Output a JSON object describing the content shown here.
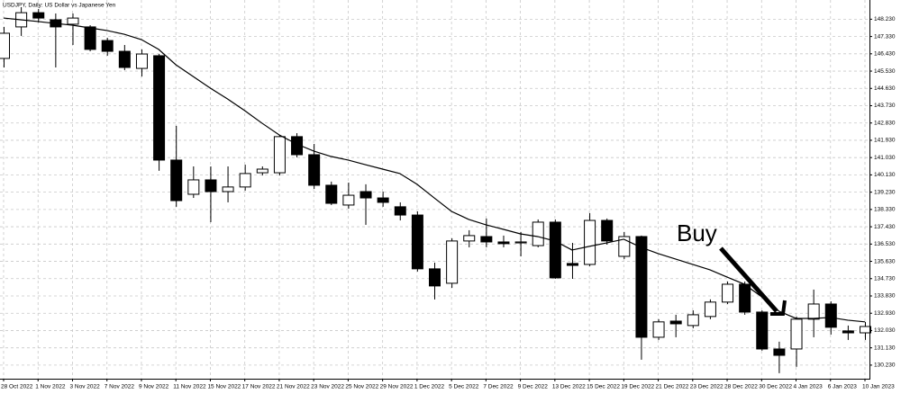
{
  "chart_data": {
    "type": "candlestick",
    "title": "USDJPY, Daily:  US Dollar vs Japanese Yen",
    "categories": [
      "28 Oct 2022",
      null,
      "1 Nov 2022",
      null,
      "3 Nov 2022",
      null,
      "7 Nov 2022",
      null,
      "9 Nov 2022",
      null,
      "11 Nov 2022",
      null,
      "15 Nov 2022",
      null,
      "17 Nov 2022",
      null,
      "21 Nov 2022",
      null,
      "23 Nov 2022",
      null,
      "25 Nov 2022",
      null,
      "29 Nov 2022",
      null,
      "1 Dec 2022",
      null,
      "5 Dec 2022",
      null,
      "7 Dec 2022",
      null,
      "9 Dec 2022",
      null,
      "13 Dec 2022",
      null,
      "15 Dec 2022",
      null,
      "19 Dec 2022",
      null,
      "21 Dec 2022",
      null,
      "23 Dec 2022",
      null,
      "28 Dec 2022",
      null,
      "30 Dec 2022",
      null,
      "4 Jan 2023",
      null,
      "6 Jan 2023",
      null,
      "10 Jan 2023"
    ],
    "open": [
      146.19,
      147.83,
      148.57,
      148.2,
      147.97,
      147.83,
      147.12,
      146.56,
      145.67,
      146.33,
      140.9,
      139.12,
      139.87,
      139.26,
      139.5,
      140.24,
      140.24,
      142.12,
      141.18,
      139.59,
      138.56,
      139.26,
      138.93,
      138.47,
      138.04,
      135.24,
      134.49,
      136.69,
      136.92,
      136.64,
      136.59,
      136.45,
      137.67,
      135.52,
      135.47,
      137.76,
      135.89,
      136.92,
      131.68,
      132.52,
      132.29,
      132.76,
      133.51,
      134.44,
      132.99,
      131.07,
      131.07,
      132.62,
      133.41,
      132.01,
      131.91
    ],
    "high": [
      147.83,
      148.86,
      148.76,
      148.53,
      148.53,
      147.92,
      147.26,
      146.89,
      146.66,
      146.42,
      142.68,
      140.57,
      140.57,
      140.57,
      140.66,
      140.57,
      142.21,
      142.3,
      141.74,
      139.78,
      139.73,
      139.64,
      139.26,
      138.7,
      138.23,
      135.56,
      136.83,
      137.25,
      137.86,
      136.97,
      137.16,
      137.81,
      137.81,
      136.59,
      138.14,
      137.86,
      137.16,
      136.97,
      132.62,
      132.85,
      133.08,
      133.65,
      134.58,
      134.58,
      133.08,
      131.45,
      132.76,
      134.16,
      133.55,
      132.29,
      132.48
    ],
    "low": [
      145.72,
      147.36,
      148.06,
      145.72,
      146.89,
      146.56,
      146.33,
      145.58,
      145.25,
      140.34,
      138.47,
      138.93,
      137.67,
      138.7,
      139.31,
      140.1,
      140.1,
      141.04,
      139.4,
      138.56,
      138.37,
      137.53,
      138.47,
      137.76,
      135.1,
      133.65,
      134.25,
      136.36,
      136.36,
      136.36,
      135.89,
      136.36,
      134.72,
      134.72,
      135.38,
      136.5,
      135.75,
      130.51,
      131.54,
      131.68,
      132.15,
      132.62,
      133.41,
      132.85,
      130.98,
      129.81,
      130.14,
      131.68,
      131.82,
      131.54,
      131.54
    ],
    "close": [
      147.5,
      148.57,
      148.29,
      147.83,
      148.29,
      146.66,
      146.56,
      145.72,
      146.42,
      140.9,
      138.79,
      139.87,
      139.26,
      139.5,
      140.2,
      140.43,
      142.12,
      141.18,
      139.59,
      138.65,
      139.07,
      138.93,
      138.7,
      138.04,
      135.24,
      134.35,
      136.69,
      136.97,
      136.64,
      136.55,
      136.64,
      137.67,
      134.77,
      135.42,
      137.76,
      136.69,
      136.92,
      131.68,
      132.48,
      132.38,
      132.85,
      133.51,
      134.44,
      132.99,
      131.07,
      130.74,
      132.62,
      133.41,
      132.2,
      131.91,
      132.24
    ],
    "up_color": "#ffffff",
    "down_color": "#000000",
    "ma": {
      "color": "#000000",
      "values": [
        148.29,
        148.2,
        148.11,
        148.01,
        147.92,
        147.78,
        147.64,
        147.45,
        147.17,
        146.66,
        145.86,
        145.25,
        144.64,
        144.08,
        143.47,
        142.82,
        142.21,
        141.74,
        141.37,
        141.09,
        140.9,
        140.66,
        140.43,
        140.2,
        139.64,
        138.93,
        138.23,
        137.81,
        137.53,
        137.3,
        137.06,
        136.92,
        136.69,
        136.22,
        136.41,
        136.59,
        136.78,
        136.36,
        136.03,
        135.75,
        135.47,
        135.19,
        134.81,
        134.44,
        133.79,
        133.04,
        132.66,
        132.66,
        132.71,
        132.57,
        132.48
      ]
    },
    "annotation": "Buy",
    "ylim": [
      129.57,
      149.23
    ],
    "yticks": [
      {
        "value": 130.23,
        "label": "130.230"
      },
      {
        "value": 131.13,
        "label": "131.130"
      },
      {
        "value": 132.03,
        "label": "132.030"
      },
      {
        "value": 132.93,
        "label": "132.930"
      },
      {
        "value": 133.83,
        "label": "133.830"
      },
      {
        "value": 134.73,
        "label": "134.730"
      },
      {
        "value": 135.63,
        "label": "135.630"
      },
      {
        "value": 136.53,
        "label": "136.530"
      },
      {
        "value": 137.43,
        "label": "137.430"
      },
      {
        "value": 138.33,
        "label": "138.330"
      },
      {
        "value": 139.23,
        "label": "139.230"
      },
      {
        "value": 140.13,
        "label": "140.130"
      },
      {
        "value": 141.03,
        "label": "141.030"
      },
      {
        "value": 141.93,
        "label": "141.930"
      },
      {
        "value": 142.83,
        "label": "142.830"
      },
      {
        "value": 143.73,
        "label": "143.730"
      },
      {
        "value": 144.63,
        "label": "144.630"
      },
      {
        "value": 145.53,
        "label": "145.530"
      },
      {
        "value": 146.43,
        "label": "146.430"
      },
      {
        "value": 147.33,
        "label": "147.330"
      },
      {
        "value": 148.23,
        "label": "148.230"
      }
    ],
    "grid": true
  }
}
